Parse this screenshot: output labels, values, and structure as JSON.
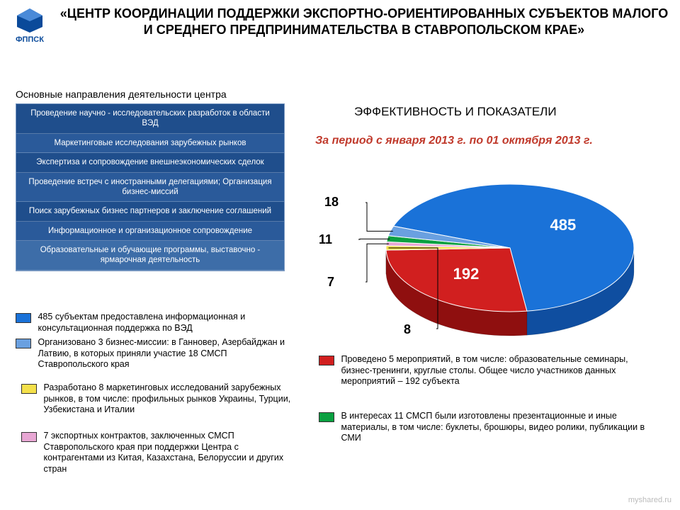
{
  "logo": {
    "text": "ФППСК",
    "color": "#0a4a9a"
  },
  "title": "«ЦЕНТР КООРДИНАЦИИ ПОДДЕРЖКИ ЭКСПОРТНО-ОРИЕНТИРОВАННЫХ СУБЪЕКТОВ МАЛОГО И СРЕДНЕГО ПРЕДПРИНИМАТЕЛЬСТВА В СТАВРОПОЛЬСКОМ КРАЕ»",
  "activities_header": "Основные направления деятельности центра",
  "activities": {
    "row_colors": [
      "#1f4e8c",
      "#2a5a9a",
      "#1f4e8c",
      "#2a5a9a",
      "#1f4e8c",
      "#2a5a9a",
      "#3d6da8"
    ],
    "items": [
      "Проведение научно - исследовательских разработок в области ВЭД",
      "Маркетинговые исследования зарубежных рынков",
      "Экспертиза и сопровождение внешнеэкономических сделок",
      "Проведение встреч с иностранными делегациями; Организация бизнес-миссий",
      "Поиск зарубежных бизнес партнеров и заключение соглашений",
      "Информационное и организационное сопровождение",
      "Образовательные и обучающие программы, выставочно - ярмарочная деятельность"
    ]
  },
  "right_title": "ЭФФЕКТИВНОСТЬ И ПОКАЗАТЕЛИ",
  "period": "За период с января 2013 г. по 01 октября 2013 г.",
  "pie": {
    "type": "pie-3d",
    "slices": [
      {
        "label": "485",
        "value": 485,
        "color_top": "#1a72d8",
        "color_side": "#0f4ea0",
        "on_slice": true
      },
      {
        "label": "192",
        "value": 192,
        "color_top": "#d11f1f",
        "color_side": "#8f0f0f",
        "on_slice": true
      },
      {
        "label": "8",
        "value": 8,
        "color_top": "#f4e04a",
        "color_side": "#b8a820",
        "on_slice": false
      },
      {
        "label": "7",
        "value": 7,
        "color_top": "#e8a7d4",
        "color_side": "#b86aa0",
        "on_slice": false
      },
      {
        "label": "11",
        "value": 11,
        "color_top": "#0aa040",
        "color_side": "#066a28",
        "on_slice": false
      },
      {
        "label": "18",
        "value": 18,
        "color_top": "#6aa0e0",
        "color_side": "#3a70b0",
        "on_slice": false
      }
    ],
    "callouts": {
      "c18": "18",
      "c11": "11",
      "c7": "7",
      "c8": "8"
    }
  },
  "legend": [
    {
      "color": "#1a72d8",
      "text": "485 субъектам предоставлена информационная и консультационная поддержка по ВЭД"
    },
    {
      "color": "#6aa0e0",
      "text": "Организовано 3 бизнес-миссии: в Ганновер, Азербайджан и Латвию, в которых приняли участие 18 СМСП Ставропольского края"
    },
    {
      "color": "#f4e04a",
      "text": "Разработано 8 маркетинговых исследований зарубежных рынков, в том числе: профильных рынков Украины, Турции, Узбекистана и Италии"
    },
    {
      "color": "#e8a7d4",
      "text": "7 экспортных контрактов, заключенных СМСП Ставропольского края при поддержки Центра с контрагентами из Китая, Казахстана, Белоруссии и других стран"
    },
    {
      "color": "#d11f1f",
      "text": "Проведено 5 мероприятий, в том числе: образовательные семинары, бизнес-тренинги, круглые столы. Общее число участников данных мероприятий – 192 субъекта"
    },
    {
      "color": "#0aa040",
      "text": "В интересах 11 СМСП были изготовлены презентационные и иные материалы, в том числе: буклеты, брошюры, видео ролики, публикации в СМИ"
    }
  ],
  "watermark": "myshared.ru"
}
